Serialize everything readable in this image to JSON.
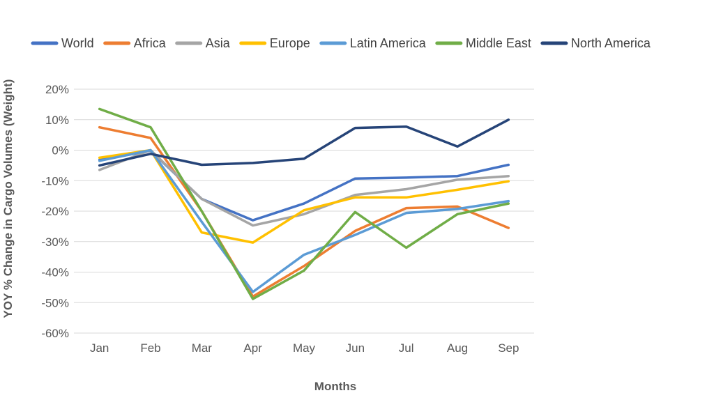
{
  "chart_data": {
    "type": "line",
    "title": "",
    "xlabel": "Months",
    "ylabel": "YOY % Change in Cargo Volumes (Weight)",
    "categories": [
      "Jan",
      "Feb",
      "Mar",
      "Apr",
      "May",
      "Jun",
      "Jul",
      "Aug",
      "Sep"
    ],
    "ylim": [
      -60,
      20
    ],
    "yticks": [
      20,
      10,
      0,
      -10,
      -20,
      -30,
      -40,
      -50,
      -60
    ],
    "ytick_labels": [
      "20%",
      "10%",
      "0%",
      "-10%",
      "-20%",
      "-30%",
      "-40%",
      "-50%",
      "-60%"
    ],
    "grid": true,
    "legend_position": "top",
    "series": [
      {
        "name": "World",
        "color": "#4472c4",
        "values": [
          -3.2,
          -0.2,
          -16,
          -23,
          -17.5,
          -9.3,
          -9,
          -8.5,
          -4.8
        ]
      },
      {
        "name": "Africa",
        "color": "#ed7d31",
        "values": [
          7.5,
          4,
          -20,
          -48,
          -38,
          -26.5,
          -19,
          -18.5,
          -25.5
        ]
      },
      {
        "name": "Asia",
        "color": "#a5a5a5",
        "values": [
          -6.5,
          0,
          -16,
          -24.7,
          -21,
          -14.7,
          -12.8,
          -9.7,
          -8.5
        ]
      },
      {
        "name": "Europe",
        "color": "#ffc000",
        "values": [
          -2.5,
          0,
          -27,
          -30.3,
          -19.7,
          -15.5,
          -15.5,
          -13,
          -10.2
        ]
      },
      {
        "name": "Latin America",
        "color": "#5b9bd5",
        "values": [
          -3.5,
          0,
          -23.5,
          -46.5,
          -34.3,
          -27.8,
          -20.6,
          -19.3,
          -16.7
        ]
      },
      {
        "name": "Middle East",
        "color": "#70ad47",
        "values": [
          13.5,
          7.5,
          -20,
          -48.8,
          -39.5,
          -20.3,
          -32,
          -21,
          -17.5
        ]
      },
      {
        "name": "North America",
        "color": "#264478",
        "values": [
          -5,
          -1.2,
          -4.8,
          -4.2,
          -2.8,
          7.3,
          7.7,
          1.2,
          10
        ]
      }
    ]
  }
}
